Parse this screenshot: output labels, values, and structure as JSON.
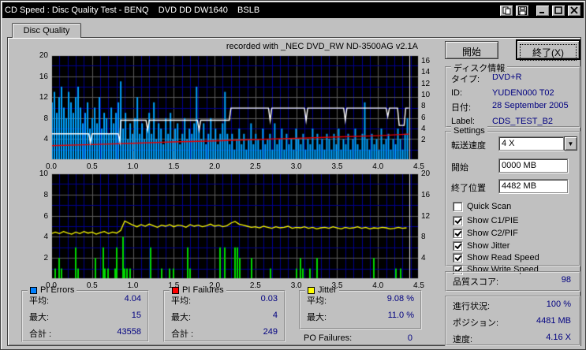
{
  "window": {
    "title": "CD Speed : Disc Quality Test - BENQ    DVD DD DW1640    BSLB"
  },
  "tab": {
    "label": "Disc Quality"
  },
  "recorded_note": "recorded with _NEC     DVD_RW ND-3500AG v2.1A",
  "buttons": {
    "start": "開始",
    "exit": "終了(X)"
  },
  "disc_info": {
    "title": "ディスク情報",
    "rows": [
      {
        "label": "タイプ:",
        "value": "DVD+R"
      },
      {
        "label": "ID:",
        "value": "YUDEN000 T02"
      },
      {
        "label": "日付:",
        "value": "28 September 2005"
      },
      {
        "label": "Label:",
        "value": "CDS_TEST_B2"
      }
    ]
  },
  "settings": {
    "title": "Settings",
    "speed_label": "転送速度",
    "speed_value": "4 X",
    "start_label": "開始",
    "start_value": "0000 MB",
    "end_label": "終了位置",
    "end_value": "4482 MB",
    "checkboxes": [
      {
        "label": "Quick Scan",
        "checked": false
      },
      {
        "label": "Show C1/PIE",
        "checked": true
      },
      {
        "label": "Show C2/PIF",
        "checked": true
      },
      {
        "label": "Show Jitter",
        "checked": true
      },
      {
        "label": "Show Read Speed",
        "checked": true
      },
      {
        "label": "Show Write Speed",
        "checked": true
      }
    ]
  },
  "quality": {
    "label": "品質スコア:",
    "value": "98"
  },
  "progress": {
    "rows": [
      {
        "label": "進行状況:",
        "value": "100 %"
      },
      {
        "label": "ポジション:",
        "value": "4481 MB"
      },
      {
        "label": "速度:",
        "value": "4.16 X"
      }
    ]
  },
  "stats": {
    "pi_errors": {
      "title": "PI Errors",
      "color": "#0080FF",
      "rows": [
        {
          "label": "平均:",
          "value": "4.04"
        },
        {
          "label": "最大:",
          "value": "15"
        },
        {
          "label": "合計 :",
          "value": "43558"
        }
      ]
    },
    "pi_failures": {
      "title": "PI Failures",
      "color": "#FF0000",
      "rows": [
        {
          "label": "平均:",
          "value": "0.03"
        },
        {
          "label": "最大:",
          "value": "4"
        },
        {
          "label": "合計 :",
          "value": "249"
        }
      ]
    },
    "jitter": {
      "title": "Jitter",
      "color": "#FFFF00",
      "rows": [
        {
          "label": "平均:",
          "value": "9.08 %"
        },
        {
          "label": "最大:",
          "value": "11.0 %"
        }
      ]
    },
    "po_failures": {
      "label": "PO Failures:",
      "value": "0"
    }
  },
  "chart_data": [
    {
      "type": "bar",
      "title": "PI Errors scan with read/write speed curves",
      "x_unit": "GB",
      "xlim": [
        0,
        4.5
      ],
      "data_end_gb": 4.38,
      "ylim_left": [
        0,
        20
      ],
      "left_ticks": [
        20,
        16,
        12,
        8,
        4
      ],
      "right_ticks_speed": [
        "16",
        "14",
        "12",
        "10",
        "8",
        "6",
        "4",
        "2"
      ],
      "x_ticks": [
        "0.0",
        "0.5",
        "1.0",
        "1.5",
        "2.0",
        "2.5",
        "3.0",
        "3.5",
        "4.0",
        "4.5"
      ],
      "colors": {
        "bars": "#00A2FF",
        "write_speed": "#FFFFFF",
        "read_speed": "#E80000",
        "grid_blue": "#000090",
        "grid_gray": "#5c5c5c",
        "bg": "#000000",
        "marker": "#D8D8D8"
      },
      "pi_errors_bars": [
        11,
        13,
        9,
        12,
        14,
        10,
        8,
        13,
        11,
        9,
        12,
        14,
        10,
        7,
        9,
        11,
        6,
        8,
        10,
        7,
        12,
        6,
        9,
        8,
        5,
        10,
        7,
        9,
        11,
        15,
        6,
        9,
        4,
        7,
        5,
        8,
        12,
        5,
        7,
        4,
        6,
        9,
        5,
        11,
        4,
        7,
        6,
        3,
        8,
        5,
        9,
        4,
        6,
        7,
        3,
        5,
        8,
        4,
        6,
        5,
        7,
        14,
        6,
        4,
        7,
        3,
        5,
        8,
        4,
        6,
        3,
        5,
        7,
        13,
        5,
        3,
        5,
        2,
        4,
        6,
        3,
        5,
        2,
        4,
        7,
        3,
        5,
        4,
        2,
        6,
        3,
        4,
        5,
        2,
        7,
        3,
        4,
        6,
        2,
        5,
        3,
        4,
        2,
        6,
        4,
        3,
        5,
        2,
        4,
        3,
        6,
        2,
        5,
        3,
        4,
        2,
        5,
        4,
        2,
        5,
        3,
        6,
        2,
        4,
        3,
        5,
        2,
        4,
        6,
        3,
        2,
        5,
        11,
        4,
        2,
        5,
        3,
        4,
        2,
        6,
        3,
        4,
        5,
        2,
        4,
        3,
        6,
        4,
        2,
        5,
        8
      ],
      "write_speed_line": [
        [
          0,
          5.0
        ],
        [
          0.46,
          5.0
        ],
        [
          0.48,
          3.3
        ],
        [
          0.5,
          5.0
        ],
        [
          0.82,
          5.0
        ],
        [
          0.84,
          3.5
        ],
        [
          0.85,
          7.6
        ],
        [
          1.16,
          7.6
        ],
        [
          1.18,
          5.7
        ],
        [
          1.2,
          7.6
        ],
        [
          1.79,
          7.6
        ],
        [
          1.81,
          5.7
        ],
        [
          1.83,
          7.6
        ],
        [
          2.18,
          7.6
        ],
        [
          2.2,
          9.9
        ],
        [
          2.66,
          9.9
        ],
        [
          2.68,
          7.5
        ],
        [
          2.7,
          9.9
        ],
        [
          3.1,
          9.9
        ],
        [
          3.12,
          7.5
        ],
        [
          3.14,
          9.9
        ],
        [
          3.58,
          9.9
        ],
        [
          3.6,
          7.5
        ],
        [
          3.62,
          9.9
        ],
        [
          4.1,
          9.9
        ],
        [
          4.12,
          8.3
        ],
        [
          4.14,
          9.9
        ],
        [
          4.24,
          9.9
        ],
        [
          4.26,
          6.6
        ],
        [
          4.32,
          6.6
        ],
        [
          4.34,
          9.9
        ],
        [
          4.38,
          9.9
        ]
      ],
      "read_speed_line": [
        [
          0,
          2.75
        ],
        [
          0.5,
          2.95
        ],
        [
          1.0,
          3.2
        ],
        [
          1.5,
          3.45
        ],
        [
          2.0,
          3.65
        ],
        [
          2.5,
          3.9
        ],
        [
          3.0,
          4.15
        ],
        [
          3.5,
          4.4
        ],
        [
          4.0,
          4.65
        ],
        [
          4.38,
          4.95
        ]
      ],
      "marker_x_gb": 4.38
    },
    {
      "type": "bar",
      "title": "PI Failures scan with jitter curve",
      "x_unit": "GB",
      "xlim": [
        0,
        4.5
      ],
      "data_end_gb": 4.38,
      "ylim_left": [
        0,
        10
      ],
      "ylim_right_jitter_pct": [
        0,
        20
      ],
      "left_ticks": [
        10,
        8,
        6,
        4,
        2
      ],
      "right_ticks_jitter": [
        "20",
        "16",
        "12",
        "8",
        "4"
      ],
      "x_ticks": [
        "0.0",
        "0.5",
        "1.0",
        "1.5",
        "2.0",
        "2.5",
        "3.0",
        "3.5",
        "4.0",
        "4.5"
      ],
      "colors": {
        "bars": "#00D800",
        "jitter": "#FFFF00",
        "grid_blue": "#000090",
        "grid_gray": "#5c5c5c",
        "bg": "#000000",
        "marker": "#D8D8D8"
      },
      "pi_failures_spikes": [
        [
          0.05,
          1
        ],
        [
          0.1,
          2
        ],
        [
          0.13,
          1
        ],
        [
          0.3,
          3
        ],
        [
          0.33,
          1
        ],
        [
          0.54,
          2
        ],
        [
          0.64,
          3
        ],
        [
          0.66,
          1
        ],
        [
          0.7,
          1
        ],
        [
          0.78,
          1
        ],
        [
          0.8,
          3
        ],
        [
          0.88,
          4
        ],
        [
          0.9,
          1
        ],
        [
          0.93,
          1
        ],
        [
          0.97,
          1
        ],
        [
          1.22,
          3
        ],
        [
          1.35,
          1
        ],
        [
          1.45,
          1
        ],
        [
          1.5,
          1
        ],
        [
          1.67,
          3
        ],
        [
          1.7,
          1
        ],
        [
          2.07,
          3
        ],
        [
          2.12,
          3
        ],
        [
          2.25,
          3
        ],
        [
          2.28,
          3
        ],
        [
          2.31,
          2
        ],
        [
          2.45,
          2
        ],
        [
          2.68,
          1
        ],
        [
          3.0,
          1
        ],
        [
          3.05,
          2
        ],
        [
          3.08,
          1
        ],
        [
          3.17,
          1
        ],
        [
          3.25,
          2
        ],
        [
          3.95,
          2
        ],
        [
          4.22,
          1
        ],
        [
          4.28,
          1
        ]
      ],
      "jitter_step_gb": 0.05,
      "jitter_values_left_scale": [
        4.3,
        4.45,
        4.3,
        4.5,
        4.35,
        4.25,
        4.45,
        4.3,
        4.5,
        4.35,
        4.45,
        4.25,
        4.4,
        4.5,
        4.3,
        4.45,
        4.35,
        4.6,
        5.5,
        5.3,
        5.1,
        4.95,
        5.15,
        5.0,
        5.2,
        5.05,
        4.9,
        5.1,
        5.0,
        5.15,
        4.95,
        5.1,
        5.05,
        4.9,
        5.15,
        5.0,
        5.1,
        4.95,
        5.05,
        5.2,
        5.0,
        5.1,
        4.95,
        5.05,
        5.3,
        5.45,
        5.2,
        5.1,
        5.0,
        4.9,
        4.95,
        4.85,
        5.0,
        4.9,
        4.8,
        4.95,
        4.85,
        4.9,
        5.0,
        4.8,
        4.9,
        4.85,
        4.95,
        4.8,
        4.9,
        4.75,
        4.85,
        4.9,
        4.8,
        4.95,
        4.85,
        4.75,
        4.9,
        4.8,
        4.85,
        4.95,
        4.8,
        4.9,
        4.75,
        4.85,
        4.8,
        4.9,
        4.85,
        4.75,
        4.8,
        4.9,
        4.8,
        4.85
      ],
      "marker_x_gb": 4.38
    }
  ]
}
